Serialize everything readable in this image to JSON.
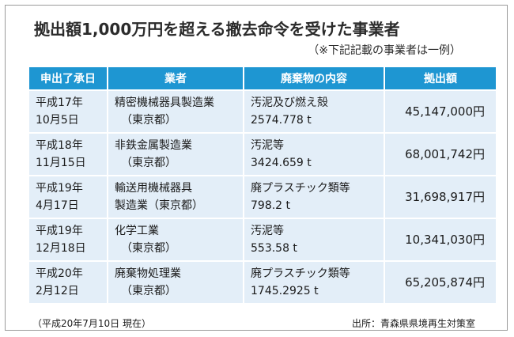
{
  "title": "拠出額1,000万円を超える撤去命令を受けた事業者",
  "subtitle": "（※下記記載の事業者は一例）",
  "headers": [
    "申出了承日",
    "業者",
    "廃棄物の内容",
    "拠出額"
  ],
  "rows": [
    {
      "date": [
        "平成17年",
        "10月5日"
      ],
      "company": [
        "精密機械器具製造業",
        "（東京都）"
      ],
      "waste": [
        "汚泥及び燃え殻",
        "2574.778 t"
      ],
      "amount": "45,147,000円"
    },
    {
      "date": [
        "平成18年",
        "11月15日"
      ],
      "company": [
        "非鉄金属製造業",
        "（東京都）"
      ],
      "waste": [
        "汚泥等",
        "3424.659 t"
      ],
      "amount": "68,001,742円"
    },
    {
      "date": [
        "平成19年",
        "4月17日"
      ],
      "company": [
        "輸送用機械器具",
        "製造業（東京都）"
      ],
      "waste": [
        "廃プラスチック類等",
        "798.2 t"
      ],
      "amount": "31,698,917円"
    },
    {
      "date": [
        "平成19年",
        "12月18日"
      ],
      "company": [
        "化学工業",
        "（東京都）"
      ],
      "waste": [
        "汚泥等",
        "553.58 t"
      ],
      "amount": "10,341,030円"
    },
    {
      "date": [
        "平成20年",
        "2月12日"
      ],
      "company": [
        "廃棄物処理業",
        "（東京都）"
      ],
      "waste": [
        "廃プラスチック類等",
        "1745.2925 t"
      ],
      "amount": "65,205,874円"
    }
  ],
  "footer": {
    "as_of": "（平成20年7月10日 現在）",
    "source": "出所：青森県県境再生対策室"
  },
  "colors": {
    "header_bg": "#1e96d2",
    "cell_bg": "#e3eef8"
  }
}
